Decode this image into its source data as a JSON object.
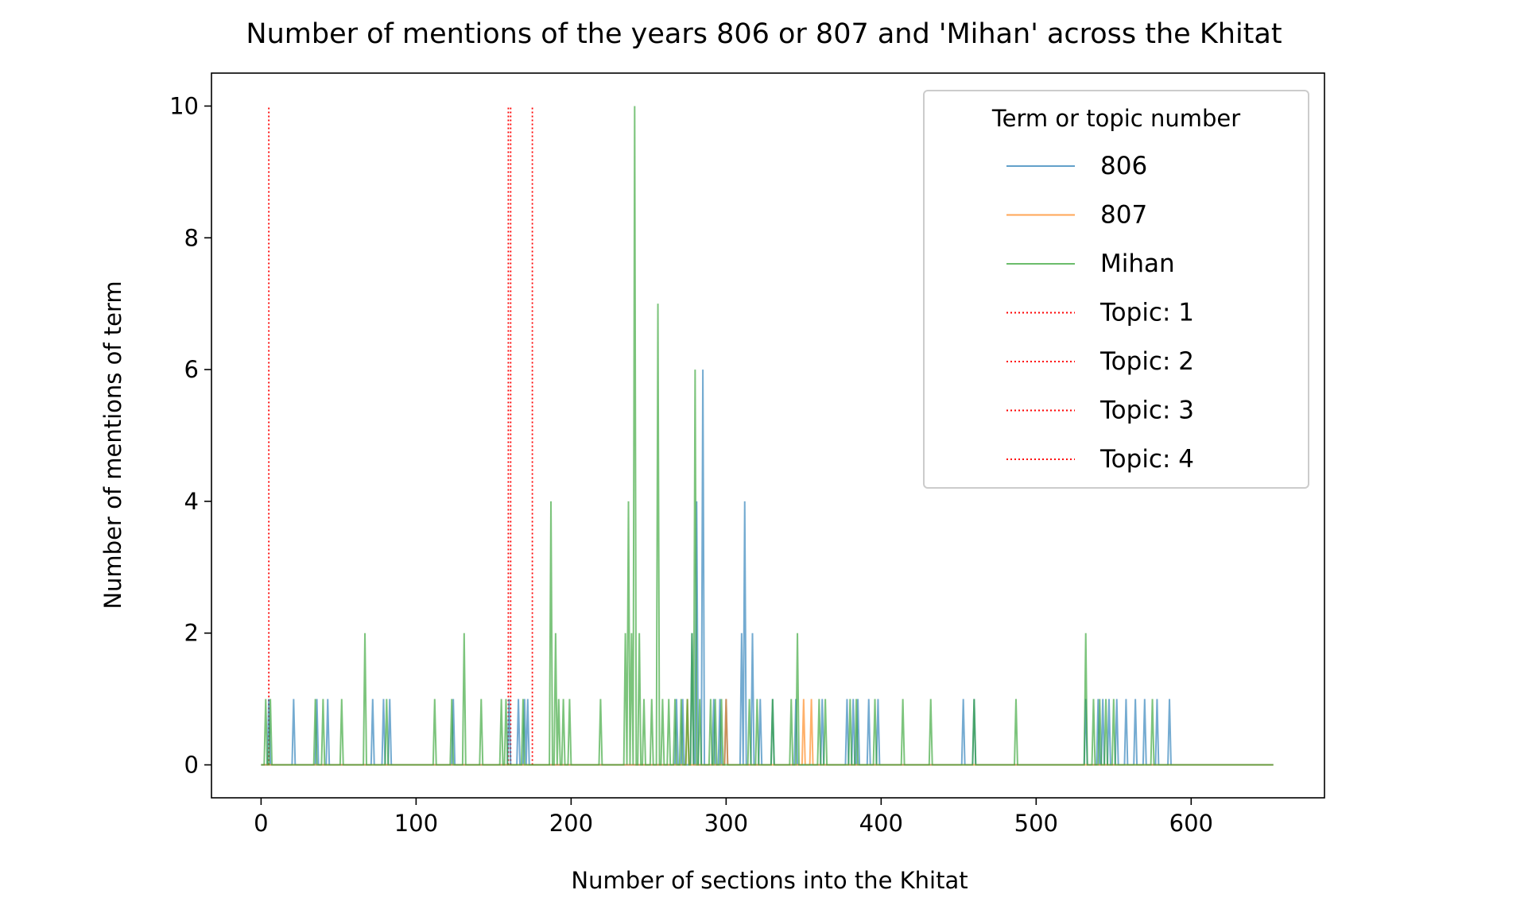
{
  "chart_data": {
    "type": "line",
    "title": "Number of mentions of the years 806 or 807 and 'Mihan' across the Khitat",
    "xlabel": "Number of sections into the Khitat",
    "ylabel": "Number of mentions of term",
    "xlim": [
      -32,
      686
    ],
    "ylim": [
      -0.5,
      10.5
    ],
    "x_ticks": [
      0,
      100,
      200,
      300,
      400,
      500,
      600
    ],
    "y_ticks": [
      0,
      2,
      4,
      6,
      8,
      10
    ],
    "x_range": [
      0,
      653
    ],
    "grid": false,
    "legend": {
      "title": "Term or topic number",
      "placement": "upper right"
    },
    "series": [
      {
        "name": "806",
        "color": "#1f77b4",
        "points": [
          [
            5,
            1
          ],
          [
            21,
            1
          ],
          [
            36,
            1
          ],
          [
            43,
            1
          ],
          [
            72,
            1
          ],
          [
            79,
            1
          ],
          [
            83,
            1
          ],
          [
            124,
            1
          ],
          [
            160,
            1
          ],
          [
            166,
            1
          ],
          [
            170,
            1
          ],
          [
            172,
            1
          ],
          [
            268,
            1
          ],
          [
            272,
            1
          ],
          [
            278,
            2
          ],
          [
            281,
            4
          ],
          [
            285,
            6
          ],
          [
            292,
            1
          ],
          [
            296,
            1
          ],
          [
            300,
            1
          ],
          [
            310,
            2
          ],
          [
            312,
            4
          ],
          [
            317,
            2
          ],
          [
            322,
            1
          ],
          [
            330,
            1
          ],
          [
            345,
            1
          ],
          [
            362,
            1
          ],
          [
            378,
            1
          ],
          [
            382,
            1
          ],
          [
            385,
            1
          ],
          [
            392,
            1
          ],
          [
            398,
            1
          ],
          [
            453,
            1
          ],
          [
            460,
            1
          ],
          [
            532,
            1
          ],
          [
            540,
            1
          ],
          [
            543,
            1
          ],
          [
            547,
            1
          ],
          [
            552,
            1
          ],
          [
            558,
            1
          ],
          [
            564,
            1
          ],
          [
            570,
            1
          ],
          [
            578,
            1
          ],
          [
            586,
            1
          ]
        ]
      },
      {
        "name": "807",
        "color": "#ff7f0e",
        "points": [
          [
            275,
            1
          ],
          [
            300,
            1
          ],
          [
            350,
            1
          ],
          [
            355,
            1
          ]
        ]
      },
      {
        "name": "Mihan",
        "color": "#2ca02c",
        "points": [
          [
            3,
            1
          ],
          [
            6,
            1
          ],
          [
            35,
            1
          ],
          [
            40,
            1
          ],
          [
            52,
            1
          ],
          [
            67,
            2
          ],
          [
            81,
            1
          ],
          [
            112,
            1
          ],
          [
            123,
            1
          ],
          [
            131,
            2
          ],
          [
            142,
            1
          ],
          [
            155,
            1
          ],
          [
            158,
            1
          ],
          [
            169,
            1
          ],
          [
            187,
            4
          ],
          [
            190,
            2
          ],
          [
            192,
            1
          ],
          [
            195,
            1
          ],
          [
            199,
            1
          ],
          [
            219,
            1
          ],
          [
            235,
            2
          ],
          [
            237,
            4
          ],
          [
            239,
            2
          ],
          [
            241,
            10
          ],
          [
            244,
            2
          ],
          [
            247,
            1
          ],
          [
            252,
            1
          ],
          [
            256,
            7
          ],
          [
            259,
            1
          ],
          [
            263,
            1
          ],
          [
            267,
            1
          ],
          [
            271,
            1
          ],
          [
            275,
            1
          ],
          [
            278,
            2
          ],
          [
            280,
            6
          ],
          [
            283,
            1
          ],
          [
            290,
            1
          ],
          [
            293,
            1
          ],
          [
            297,
            1
          ],
          [
            315,
            1
          ],
          [
            320,
            1
          ],
          [
            330,
            1
          ],
          [
            342,
            1
          ],
          [
            346,
            2
          ],
          [
            360,
            1
          ],
          [
            364,
            1
          ],
          [
            380,
            1
          ],
          [
            384,
            1
          ],
          [
            396,
            1
          ],
          [
            414,
            1
          ],
          [
            432,
            1
          ],
          [
            460,
            1
          ],
          [
            487,
            1
          ],
          [
            532,
            2
          ],
          [
            537,
            1
          ],
          [
            541,
            1
          ],
          [
            545,
            1
          ],
          [
            550,
            1
          ],
          [
            575,
            1
          ]
        ]
      }
    ],
    "topic_lines": [
      {
        "name": "Topic: 1",
        "x": 5,
        "color": "#ff0000",
        "style": "dotted",
        "y_top": 10
      },
      {
        "name": "Topic: 2",
        "x": 159.5,
        "color": "#ff0000",
        "style": "dotted",
        "y_top": 10
      },
      {
        "name": "Topic: 3",
        "x": 161,
        "color": "#ff0000",
        "style": "dotted",
        "y_top": 10
      },
      {
        "name": "Topic: 4",
        "x": 175,
        "color": "#ff0000",
        "style": "dotted",
        "y_top": 10
      }
    ]
  }
}
